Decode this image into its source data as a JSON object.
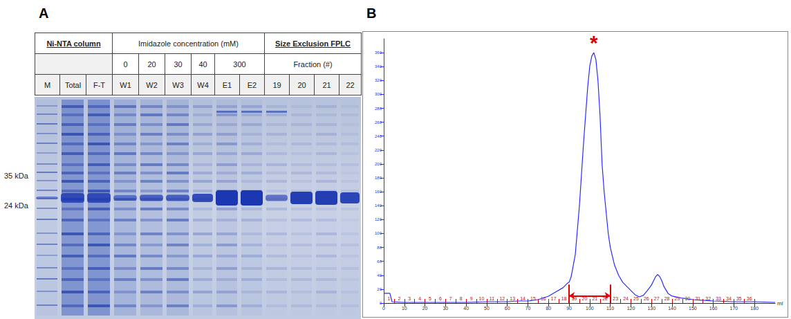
{
  "panel_a": {
    "label": "A",
    "header": {
      "column_title": "Ni-NTA column",
      "wash_title": "Imidazole concentration (mM)",
      "sec_title": "Size Exclusion FPLC",
      "imidazole": [
        "0",
        "20",
        "30",
        "40",
        "300"
      ],
      "fraction_title": "Fraction (#)"
    },
    "lanes": [
      "M",
      "Total",
      "F-T",
      "W1",
      "W2",
      "W3",
      "W4",
      "E1",
      "E2",
      "19",
      "20",
      "21",
      "22"
    ],
    "markers": [
      "35 kDa",
      "24 kDa"
    ]
  },
  "chart_data": {
    "type": "line",
    "label": "B",
    "annotation": "*",
    "color": "#2a2aff",
    "x": [
      0,
      3,
      4,
      10,
      20,
      30,
      40,
      50,
      60,
      65,
      70,
      75,
      80,
      84,
      87,
      89,
      90,
      91,
      93,
      95,
      97,
      99,
      100,
      101,
      102,
      103,
      104,
      105,
      106,
      107,
      108,
      109,
      110,
      112,
      114,
      116,
      118,
      120,
      122,
      124,
      126,
      128,
      130,
      131,
      132,
      133,
      134,
      135,
      136,
      138,
      140,
      145,
      150,
      160,
      170,
      180,
      190
    ],
    "values": [
      14,
      14,
      2,
      1,
      1,
      1,
      1,
      2,
      2,
      3,
      3,
      5,
      10,
      17,
      22,
      28,
      30,
      38,
      70,
      140,
      230,
      310,
      340,
      355,
      360,
      350,
      320,
      270,
      200,
      160,
      130,
      100,
      80,
      55,
      40,
      30,
      24,
      18,
      12,
      9,
      11,
      18,
      26,
      32,
      38,
      41,
      38,
      32,
      24,
      14,
      10,
      7,
      5,
      3,
      2,
      2,
      1
    ],
    "x_label": "ml",
    "xlim": [
      0,
      190
    ],
    "xticks": [
      0,
      10,
      20,
      30,
      40,
      50,
      60,
      70,
      80,
      90,
      100,
      110,
      120,
      130,
      140,
      150,
      160,
      170,
      180
    ],
    "ylim": [
      0,
      380
    ],
    "yticks": [
      0,
      20,
      40,
      60,
      80,
      100,
      120,
      140,
      160,
      180,
      200,
      220,
      240,
      260,
      280,
      300,
      320,
      340,
      360
    ],
    "grid": false,
    "fractions": {
      "labels": [
        1,
        2,
        3,
        4,
        5,
        6,
        7,
        8,
        9,
        10,
        11,
        12,
        13,
        14,
        15,
        16,
        17,
        18,
        19,
        20,
        21,
        22,
        23,
        24,
        25,
        26,
        27,
        28,
        29,
        30,
        31,
        32,
        33,
        34,
        35,
        36
      ],
      "bounds": [
        0,
        5,
        10,
        15,
        20,
        25,
        30,
        35,
        40,
        45,
        50,
        55,
        60,
        65,
        70,
        75,
        80,
        85,
        90,
        95,
        100,
        105,
        110,
        115,
        120,
        125,
        130,
        135,
        140,
        145,
        150,
        155,
        160,
        165,
        170,
        175,
        180
      ]
    },
    "collected_range": [
      90,
      110
    ]
  }
}
